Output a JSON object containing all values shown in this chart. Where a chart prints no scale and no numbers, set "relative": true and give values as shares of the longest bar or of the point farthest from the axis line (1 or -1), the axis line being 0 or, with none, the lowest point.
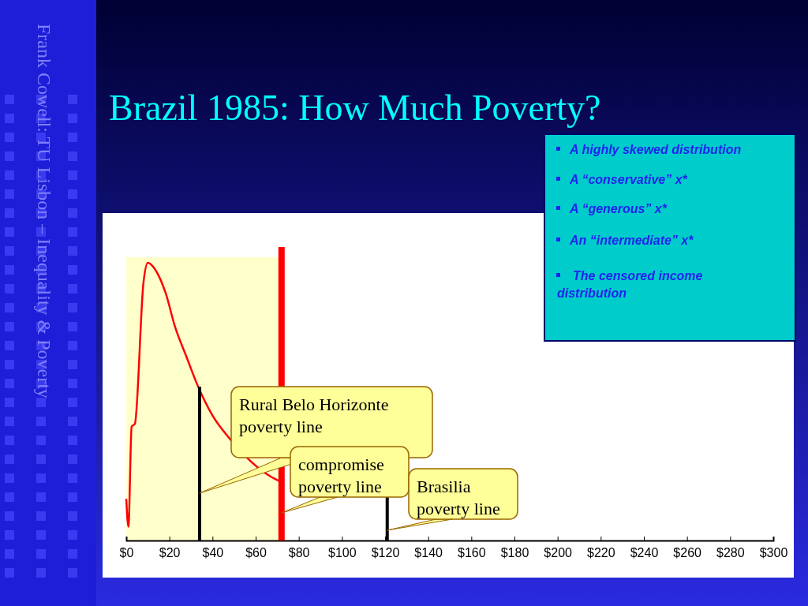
{
  "chart_data": {
    "type": "line",
    "title": "Brazil 1985: How Much Poverty?",
    "relative": true,
    "x": [
      0,
      1,
      2.5,
      4,
      8,
      10,
      12,
      14.6,
      18.3,
      22.6,
      28,
      33,
      40,
      47.6,
      67,
      72
    ],
    "series": [
      {
        "color": "#ff0000",
        "values": [
          0.15,
          0.05,
          0.41,
          0.42,
          0.93,
          1.0,
          0.99,
          0.96,
          0.89,
          0.77,
          0.66,
          0.56,
          0.45,
          0.37,
          0.23,
          0.21
        ]
      }
    ],
    "xlim": [
      0,
      300
    ],
    "xticks": [
      {
        "value": 0,
        "label": "$0"
      },
      {
        "value": 20,
        "label": "$20"
      },
      {
        "value": 40,
        "label": "$40"
      },
      {
        "value": 60,
        "label": "$60"
      },
      {
        "value": 80,
        "label": "$80"
      },
      {
        "value": 100,
        "label": "$100"
      },
      {
        "value": 120,
        "label": "$120"
      },
      {
        "value": 140,
        "label": "$140"
      },
      {
        "value": 160,
        "label": "$160"
      },
      {
        "value": 180,
        "label": "$180"
      },
      {
        "value": 200,
        "label": "$200"
      },
      {
        "value": 220,
        "label": "$220"
      },
      {
        "value": 240,
        "label": "$240"
      },
      {
        "value": 260,
        "label": "$260"
      },
      {
        "value": 280,
        "label": "$280"
      },
      {
        "value": 300,
        "label": "$300"
      }
    ],
    "ref_lines": [
      {
        "axis": "x",
        "value": 34,
        "label": "Rural Belo Horizonte poverty line",
        "color": "#000000"
      },
      {
        "axis": "x",
        "value": 72,
        "label": "compromise poverty line",
        "color": "#ff0000"
      },
      {
        "axis": "x",
        "value": 121,
        "label": "Brasilia poverty line",
        "color": "#000000"
      }
    ],
    "bands": [
      {
        "axis": "x",
        "from": 0,
        "to": 72,
        "color": "#ffffcc"
      }
    ],
    "annotations": [
      "A highly skewed distribution",
      "A “conservative” x*",
      "A “generous” x*",
      "An “intermediate” x*",
      "The censored income distribution",
      "Frank Cowell: TU Lisbon – Inequality & Poverty"
    ]
  }
}
